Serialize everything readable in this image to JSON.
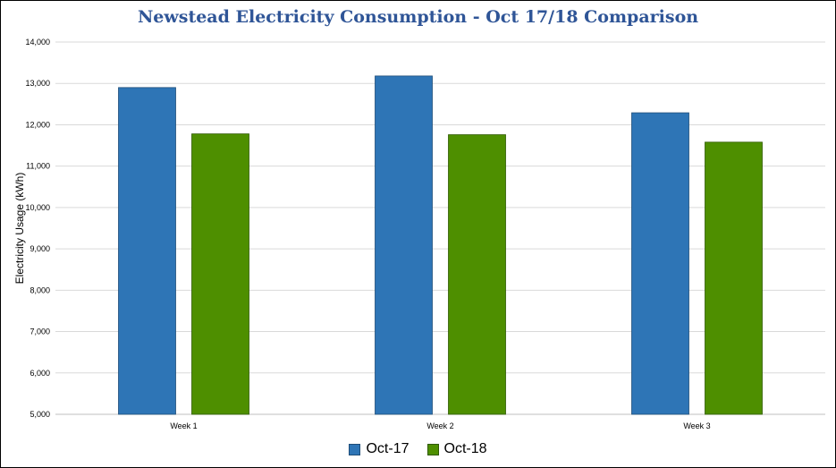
{
  "chart_data": {
    "type": "bar",
    "title": "Newstead Electricity Consumption - Oct 17/18 Comparison",
    "xlabel": "",
    "ylabel": "Electricity Usage (kWh)",
    "ylim": [
      5000,
      14000
    ],
    "yticks": [
      5000,
      6000,
      7000,
      8000,
      9000,
      10000,
      11000,
      12000,
      13000,
      14000
    ],
    "ytick_labels": [
      "5,000",
      "6,000",
      "7,000",
      "8,000",
      "9,000",
      "10,000",
      "11,000",
      "12,000",
      "13,000",
      "14,000"
    ],
    "categories": [
      "Week 1",
      "Week 2",
      "Week 3"
    ],
    "series": [
      {
        "name": "Oct-17",
        "color": "#2e75b6",
        "values": [
          12900,
          13180,
          12290
        ]
      },
      {
        "name": "Oct-18",
        "color": "#4e8f00",
        "values": [
          11780,
          11760,
          11580
        ]
      }
    ],
    "grid": true,
    "legend_position": "bottom"
  }
}
